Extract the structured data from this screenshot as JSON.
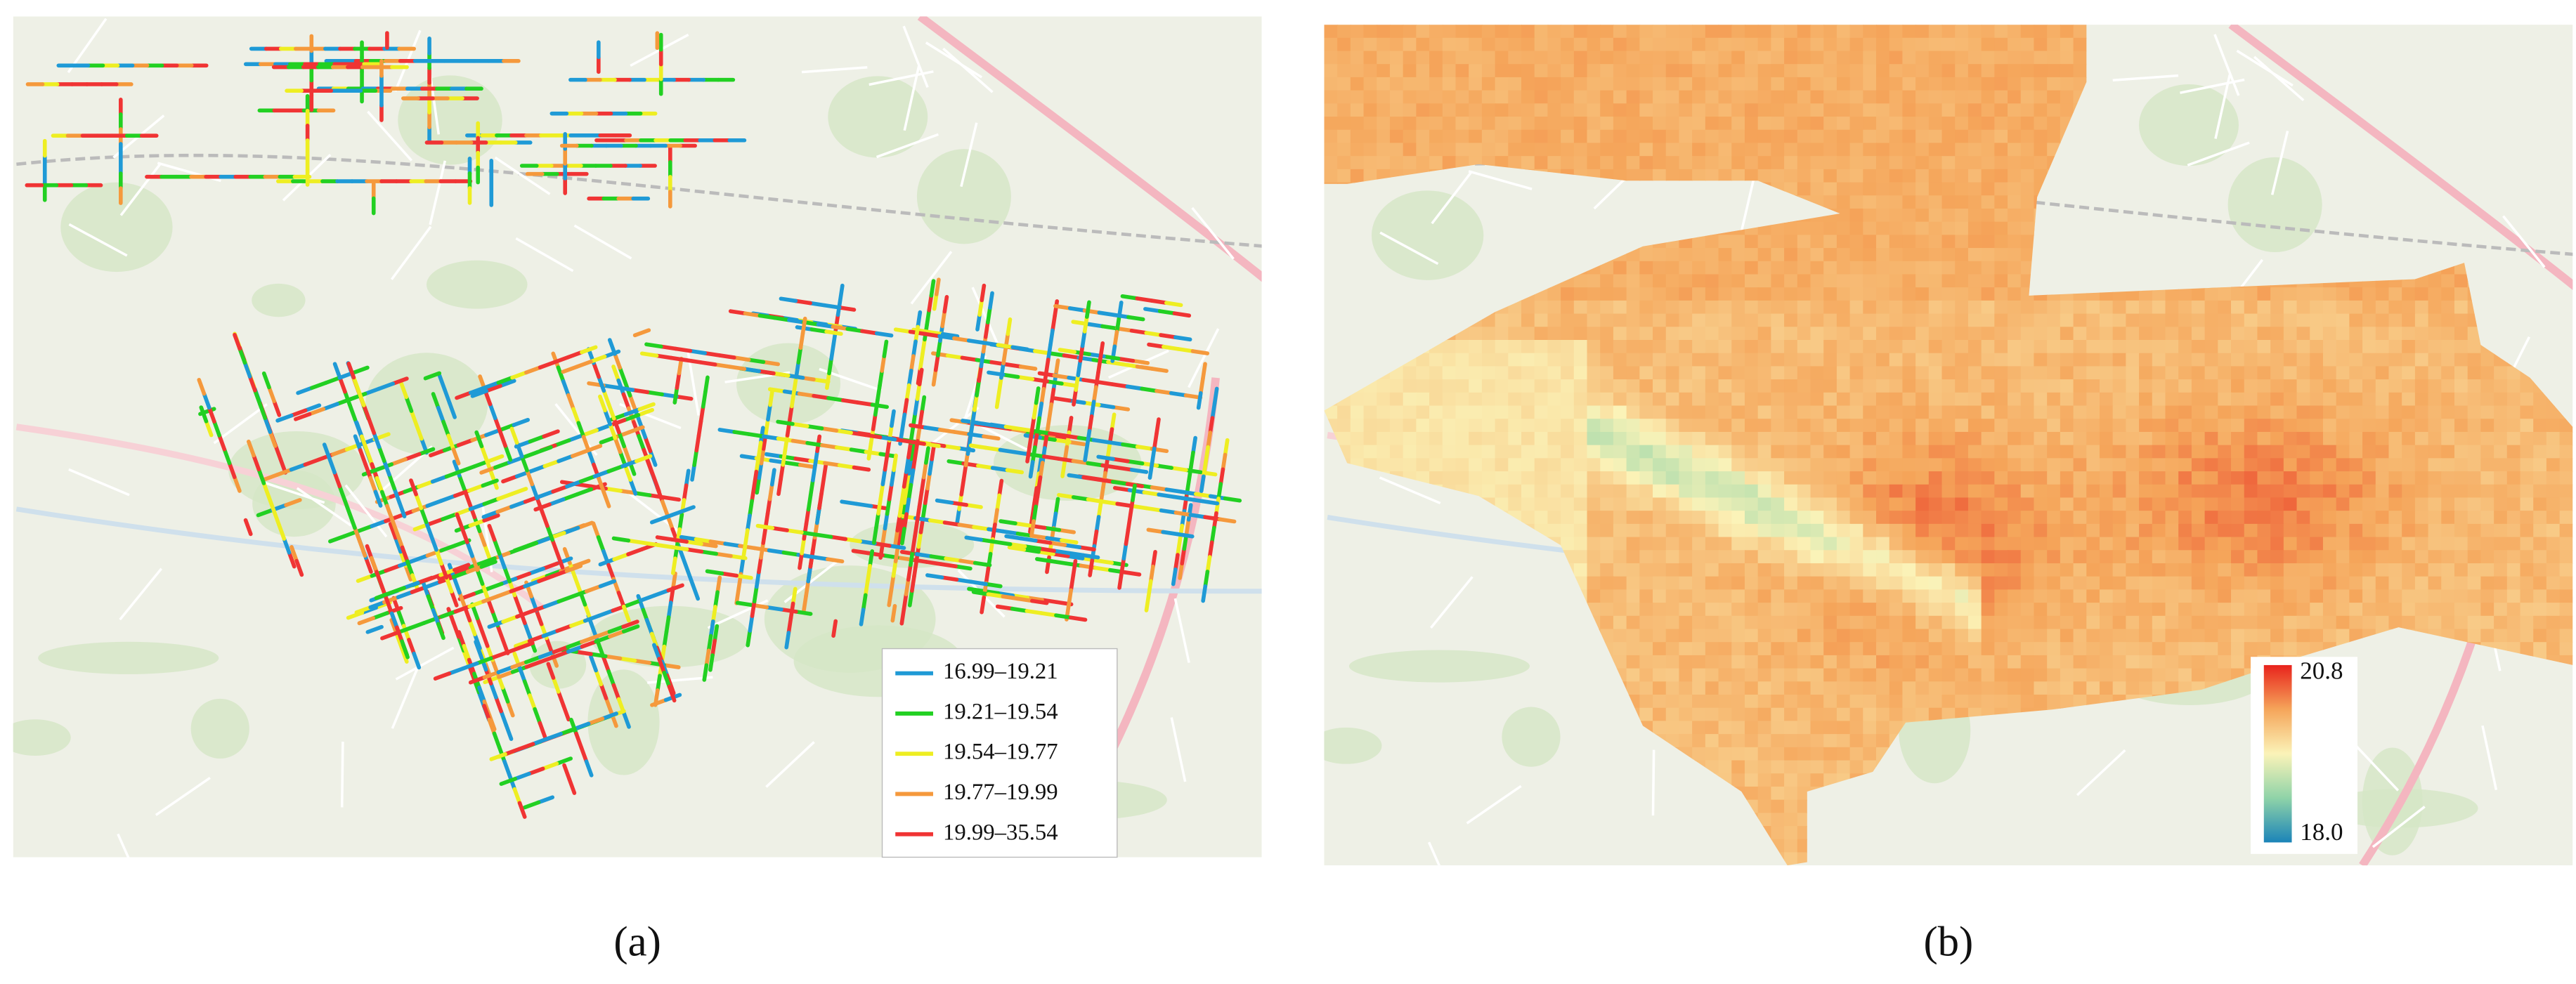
{
  "panels": [
    {
      "caption": "(a)",
      "legend": [
        {
          "label": "16.99–19.21",
          "color": "#1f9ad6"
        },
        {
          "label": "19.21–19.54",
          "color": "#22d022"
        },
        {
          "label": "19.54–19.77",
          "color": "#eeee22"
        },
        {
          "label": "19.77–19.99",
          "color": "#f5993c"
        },
        {
          "label": "19.99–35.54",
          "color": "#f03434"
        }
      ]
    },
    {
      "caption": "(b)",
      "colorbar": {
        "max": "20.8",
        "min": "18.0",
        "colors": [
          "#e8231c",
          "#f5a55a",
          "#fbf3b8",
          "#8fd3a8",
          "#1b84b8"
        ]
      }
    }
  ]
}
